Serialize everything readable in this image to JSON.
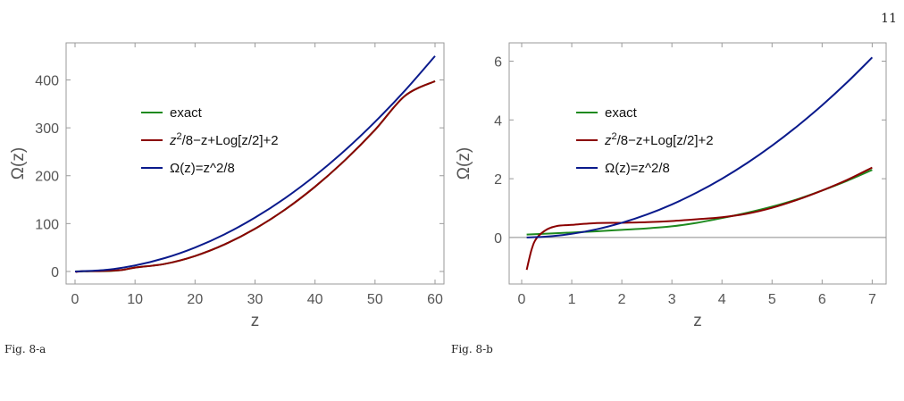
{
  "page": {
    "number": "11"
  },
  "figures": [
    {
      "caption": "Fig. 8-a"
    },
    {
      "caption": "Fig. 8-b"
    }
  ],
  "chart_data": [
    {
      "type": "line",
      "xlabel": "z",
      "ylabel": "Ω(z)",
      "xlim": [
        0,
        60
      ],
      "ylim": [
        -15,
        470
      ],
      "xticks": [
        0,
        10,
        20,
        30,
        40,
        50,
        60
      ],
      "yticks": [
        0,
        100,
        200,
        300,
        400
      ],
      "xtick_labels": [
        "0",
        "10",
        "20",
        "30",
        "40",
        "50",
        "60"
      ],
      "ytick_labels": [
        "0",
        "100",
        "200",
        "300",
        "400"
      ],
      "legend_position": "upper-left",
      "series": [
        {
          "name": "exact",
          "color": "#1f8a1f",
          "x": [
            0.1,
            1,
            2,
            4,
            6,
            8,
            10,
            15,
            20,
            25,
            30,
            35,
            40,
            45,
            50,
            55,
            60
          ],
          "y": [
            0.1,
            0.17,
            0.5,
            0.69,
            1.0,
            3.4,
            8.1,
            15.9,
            32.3,
            56.9,
            89.2,
            129.2,
            177.0,
            232.5,
            295.7,
            366.9,
            397.5
          ]
        },
        {
          "name": "z^2/8−z+Log[z/2]+2",
          "color": "#8b0000",
          "x": [
            0.1,
            1,
            2,
            4,
            6,
            8,
            10,
            15,
            20,
            25,
            30,
            35,
            40,
            45,
            50,
            55,
            60
          ],
          "y": [
            -1.1,
            0.43,
            0.5,
            0.69,
            1.6,
            3.4,
            8.1,
            15.9,
            32.3,
            56.9,
            89.2,
            129.2,
            177.0,
            232.5,
            295.7,
            366.9,
            397.5
          ]
        },
        {
          "name": "Ω(z)=z^2/8",
          "color": "#0a1a8c",
          "x": [
            0,
            5,
            10,
            15,
            20,
            25,
            30,
            35,
            40,
            45,
            50,
            55,
            60
          ],
          "y": [
            0,
            3.1,
            12.5,
            28.1,
            50,
            78.1,
            112.5,
            153.1,
            200,
            253.1,
            312.5,
            378.1,
            450
          ]
        }
      ]
    },
    {
      "type": "line",
      "xlabel": "z",
      "ylabel": "Ω(z)",
      "xlim": [
        0,
        7.1
      ],
      "ylim": [
        -1.4,
        6.5
      ],
      "xticks": [
        0,
        1,
        2,
        3,
        4,
        5,
        6,
        7
      ],
      "yticks": [
        0,
        2,
        4,
        6
      ],
      "xtick_labels": [
        "0",
        "1",
        "2",
        "3",
        "4",
        "5",
        "6",
        "7"
      ],
      "ytick_labels": [
        "0",
        "2",
        "4",
        "6"
      ],
      "zero_line": true,
      "legend_position": "upper-left",
      "series": [
        {
          "name": "exact",
          "color": "#1f8a1f",
          "x": [
            0.1,
            0.5,
            1,
            1.5,
            2,
            2.5,
            3,
            3.5,
            4,
            4.5,
            5,
            5.5,
            6,
            6.5,
            7
          ],
          "y": [
            0.1,
            0.13,
            0.17,
            0.21,
            0.26,
            0.31,
            0.38,
            0.5,
            0.66,
            0.84,
            1.05,
            1.3,
            1.6,
            1.93,
            2.3
          ]
        },
        {
          "name": "z^2/8−z+Log[z/2]+2",
          "color": "#8b0000",
          "x": [
            0.1,
            0.2,
            0.3,
            0.5,
            0.7,
            1,
            1.5,
            2,
            2.5,
            3,
            3.5,
            4,
            4.5,
            5,
            5.5,
            6,
            6.5,
            7
          ],
          "y": [
            -1.1,
            -0.4,
            -0.02,
            0.27,
            0.39,
            0.43,
            0.49,
            0.5,
            0.52,
            0.56,
            0.62,
            0.69,
            0.81,
            1.01,
            1.28,
            1.6,
            1.96,
            2.38
          ]
        },
        {
          "name": "Ω(z)=z^2/8",
          "color": "#0a1a8c",
          "x": [
            0.1,
            0.5,
            1,
            1.5,
            2,
            2.5,
            3,
            3.5,
            4,
            4.5,
            5,
            5.5,
            6,
            6.5,
            7
          ],
          "y": [
            0.001,
            0.031,
            0.125,
            0.281,
            0.5,
            0.781,
            1.125,
            1.531,
            2.0,
            2.531,
            3.125,
            3.781,
            4.5,
            5.281,
            6.125
          ]
        }
      ]
    }
  ]
}
